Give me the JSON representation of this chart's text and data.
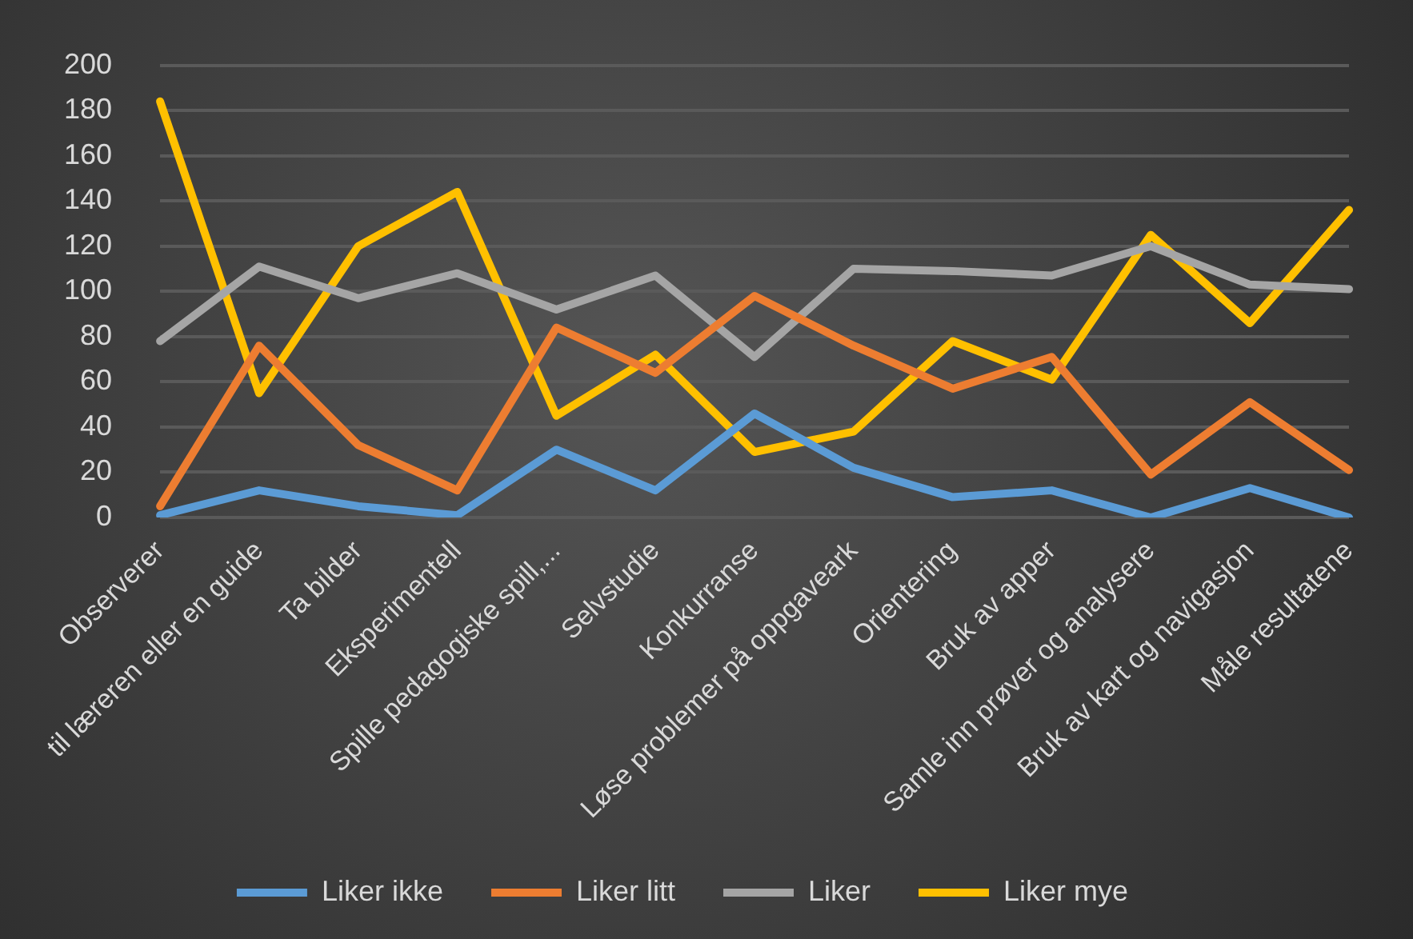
{
  "chart_data": {
    "type": "line",
    "categories": [
      "Observerer",
      "til læreren eller en guide",
      "Ta bilder",
      "Eksperimentell",
      "Spille pedagogiske spill,...",
      "Selvstudie",
      "Konkurranse",
      "Løse problemer på oppgaveark",
      "Orientering",
      "Bruk av apper",
      "Samle inn prøver og analysere",
      "Bruk av kart og navigasjon",
      "Måle resultatene"
    ],
    "series": [
      {
        "name": "Liker ikke",
        "color": "#5b9bd5",
        "values": [
          1,
          12,
          5,
          1,
          30,
          12,
          46,
          22,
          9,
          12,
          0,
          13,
          0
        ]
      },
      {
        "name": "Liker litt",
        "color": "#ed7d31",
        "values": [
          5,
          76,
          32,
          12,
          84,
          64,
          98,
          76,
          57,
          71,
          19,
          51,
          21
        ]
      },
      {
        "name": "Liker",
        "color": "#a5a5a5",
        "values": [
          78,
          111,
          97,
          108,
          92,
          107,
          71,
          110,
          109,
          107,
          120,
          103,
          101
        ]
      },
      {
        "name": "Liker mye",
        "color": "#ffc000",
        "values": [
          184,
          55,
          120,
          144,
          45,
          72,
          29,
          38,
          78,
          61,
          125,
          86,
          136
        ]
      }
    ],
    "ylim": [
      0,
      200
    ],
    "yticks": [
      0,
      20,
      40,
      60,
      80,
      100,
      120,
      140,
      160,
      180,
      200
    ],
    "grid": "y",
    "legend": "bottom",
    "marker": "none",
    "line_style": "solid"
  }
}
